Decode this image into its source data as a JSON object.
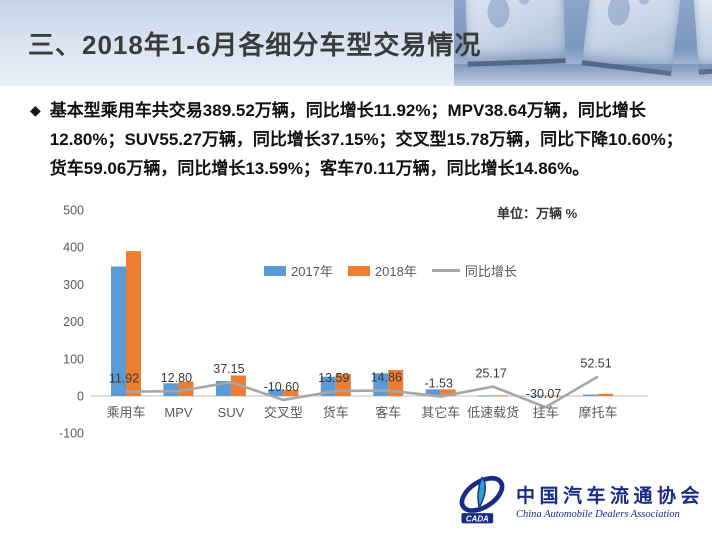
{
  "slide": {
    "title": "三、2018年1-6月各细分车型交易情况",
    "bullet_char": "◆",
    "bullet_text": "基本型乘用车共交易389.52万辆，同比增长11.92%；MPV38.64万辆，同比增长12.80%；SUV55.27万辆，同比增长37.15%；交叉型15.78万辆，同比下降10.60%；货车59.06万辆，同比增长13.59%；客车70.11万辆，同比增长14.86%。"
  },
  "chart": {
    "unit_label": "单位：万辆 %",
    "legend": [
      {
        "label": "2017年",
        "color": "#5B9BD5",
        "type": "swatch"
      },
      {
        "label": "2018年",
        "color": "#ED7D31",
        "type": "swatch"
      },
      {
        "label": "同比增长",
        "color": "#A6A6A6",
        "type": "line"
      }
    ]
  },
  "chart_data": {
    "type": "bar",
    "subtype": "grouped bars with overlaid line (combo chart)",
    "title": "",
    "unit": "万辆 %",
    "categories": [
      "乘用车",
      "MPV",
      "SUV",
      "交叉型",
      "货车",
      "客车",
      "其它车",
      "低速载货",
      "挂车",
      "摩托车"
    ],
    "series": [
      {
        "name": "2017年",
        "type": "bar",
        "color": "#5B9BD5",
        "values": [
          348.04,
          34.26,
          40.3,
          17.65,
          51.99,
          61.04,
          18.0,
          1.5,
          1.6,
          3.8
        ],
        "note": "unlabeled; derived from 2018 values and growth rates / estimated from bar heights"
      },
      {
        "name": "2018年",
        "type": "bar",
        "color": "#ED7D31",
        "values": [
          389.52,
          38.64,
          55.27,
          15.78,
          59.06,
          70.11,
          17.7,
          1.9,
          1.1,
          5.8
        ],
        "note": "first six values stated in slide text; last four estimated from bar heights"
      },
      {
        "name": "同比增长",
        "type": "line",
        "color": "#A6A6A6",
        "values": [
          11.92,
          12.8,
          37.15,
          -10.6,
          13.59,
          14.86,
          -1.53,
          25.17,
          -30.07,
          52.51
        ]
      }
    ],
    "data_labels": [
      "11.92",
      "12.80",
      "37.15",
      "-10.60",
      "13.59",
      "14.86",
      "-1.53",
      "25.17",
      "-30.07",
      "52.51"
    ],
    "y_ticks": [
      500,
      400,
      300,
      200,
      100,
      0,
      -100
    ],
    "ylim": [
      -100,
      500
    ],
    "grid": false,
    "legend_position": "inside top center"
  },
  "logo": {
    "cada": "CADA",
    "cn": "中国汽车流通协会",
    "en": "China Automobile Dealers Association"
  }
}
